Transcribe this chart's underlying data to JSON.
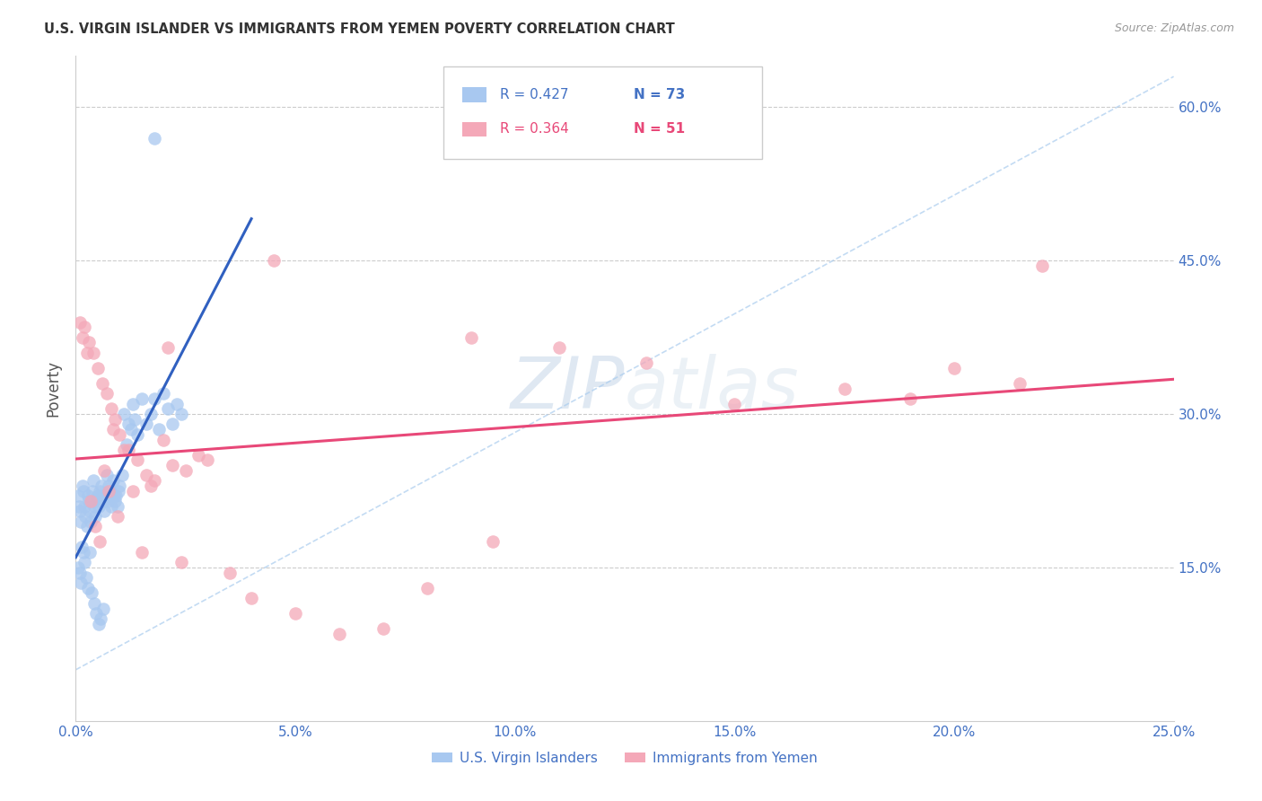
{
  "title": "U.S. VIRGIN ISLANDER VS IMMIGRANTS FROM YEMEN POVERTY CORRELATION CHART",
  "source": "Source: ZipAtlas.com",
  "xlabel_vals": [
    0.0,
    5.0,
    10.0,
    15.0,
    20.0,
    25.0
  ],
  "ylabel_vals": [
    15.0,
    30.0,
    45.0,
    60.0
  ],
  "xmin": 0.0,
  "xmax": 25.0,
  "ymin": 0.0,
  "ymax": 65.0,
  "watermark": "ZIPatlas",
  "legend1_label": "U.S. Virgin Islanders",
  "legend2_label": "Immigrants from Yemen",
  "R1": "0.427",
  "N1": "73",
  "R2": "0.364",
  "N2": "51",
  "color_blue": "#a8c8f0",
  "color_pink": "#f4a8b8",
  "color_blue_line": "#3060c0",
  "color_pink_line": "#e84878",
  "color_blue_text": "#4472c4",
  "color_pink_text": "#e84878",
  "blue_scatter_x": [
    0.05,
    0.08,
    0.1,
    0.12,
    0.15,
    0.18,
    0.2,
    0.22,
    0.25,
    0.28,
    0.3,
    0.32,
    0.35,
    0.38,
    0.4,
    0.42,
    0.45,
    0.48,
    0.5,
    0.52,
    0.55,
    0.58,
    0.6,
    0.62,
    0.65,
    0.68,
    0.7,
    0.72,
    0.75,
    0.78,
    0.8,
    0.82,
    0.85,
    0.88,
    0.9,
    0.92,
    0.95,
    0.98,
    1.0,
    1.05,
    1.1,
    1.15,
    1.2,
    1.25,
    1.3,
    1.35,
    1.4,
    1.5,
    1.6,
    1.7,
    1.8,
    1.9,
    2.0,
    2.1,
    2.2,
    2.3,
    2.4,
    0.06,
    0.09,
    0.11,
    0.14,
    0.17,
    0.19,
    0.24,
    0.27,
    0.31,
    0.37,
    0.43,
    0.47,
    0.53,
    0.57,
    0.63,
    1.8
  ],
  "blue_scatter_y": [
    22.0,
    21.0,
    20.5,
    19.5,
    23.0,
    22.5,
    21.0,
    20.0,
    19.0,
    22.0,
    21.5,
    20.5,
    19.5,
    22.5,
    23.5,
    21.0,
    20.0,
    21.5,
    22.0,
    21.0,
    22.5,
    23.0,
    22.0,
    21.5,
    20.5,
    22.0,
    24.0,
    21.5,
    23.0,
    22.5,
    21.0,
    22.0,
    23.5,
    22.0,
    21.5,
    22.0,
    21.0,
    22.5,
    23.0,
    24.0,
    30.0,
    27.0,
    29.0,
    28.5,
    31.0,
    29.5,
    28.0,
    31.5,
    29.0,
    30.0,
    31.5,
    28.5,
    32.0,
    30.5,
    29.0,
    31.0,
    30.0,
    15.0,
    14.5,
    13.5,
    17.0,
    16.5,
    15.5,
    14.0,
    13.0,
    16.5,
    12.5,
    11.5,
    10.5,
    9.5,
    10.0,
    11.0,
    57.0
  ],
  "pink_scatter_x": [
    0.1,
    0.2,
    0.3,
    0.4,
    0.5,
    0.6,
    0.7,
    0.8,
    0.9,
    1.0,
    1.2,
    1.4,
    1.6,
    1.8,
    2.0,
    2.2,
    2.5,
    2.8,
    3.0,
    3.5,
    4.0,
    5.0,
    6.0,
    7.0,
    8.0,
    9.5,
    11.0,
    13.0,
    15.0,
    17.5,
    20.0,
    22.0,
    0.15,
    0.25,
    0.35,
    0.45,
    0.55,
    0.65,
    0.75,
    0.85,
    0.95,
    1.1,
    1.3,
    1.5,
    1.7,
    2.1,
    2.4,
    4.5,
    9.0,
    19.0,
    21.5
  ],
  "pink_scatter_y": [
    39.0,
    38.5,
    37.0,
    36.0,
    34.5,
    33.0,
    32.0,
    30.5,
    29.5,
    28.0,
    26.5,
    25.5,
    24.0,
    23.5,
    27.5,
    25.0,
    24.5,
    26.0,
    25.5,
    14.5,
    12.0,
    10.5,
    8.5,
    9.0,
    13.0,
    17.5,
    36.5,
    35.0,
    31.0,
    32.5,
    34.5,
    44.5,
    37.5,
    36.0,
    21.5,
    19.0,
    17.5,
    24.5,
    22.5,
    28.5,
    20.0,
    26.5,
    22.5,
    16.5,
    23.0,
    36.5,
    15.5,
    45.0,
    37.5,
    31.5,
    33.0
  ],
  "diag_line_x": [
    0.0,
    25.0
  ],
  "diag_line_y": [
    5.0,
    63.0
  ]
}
